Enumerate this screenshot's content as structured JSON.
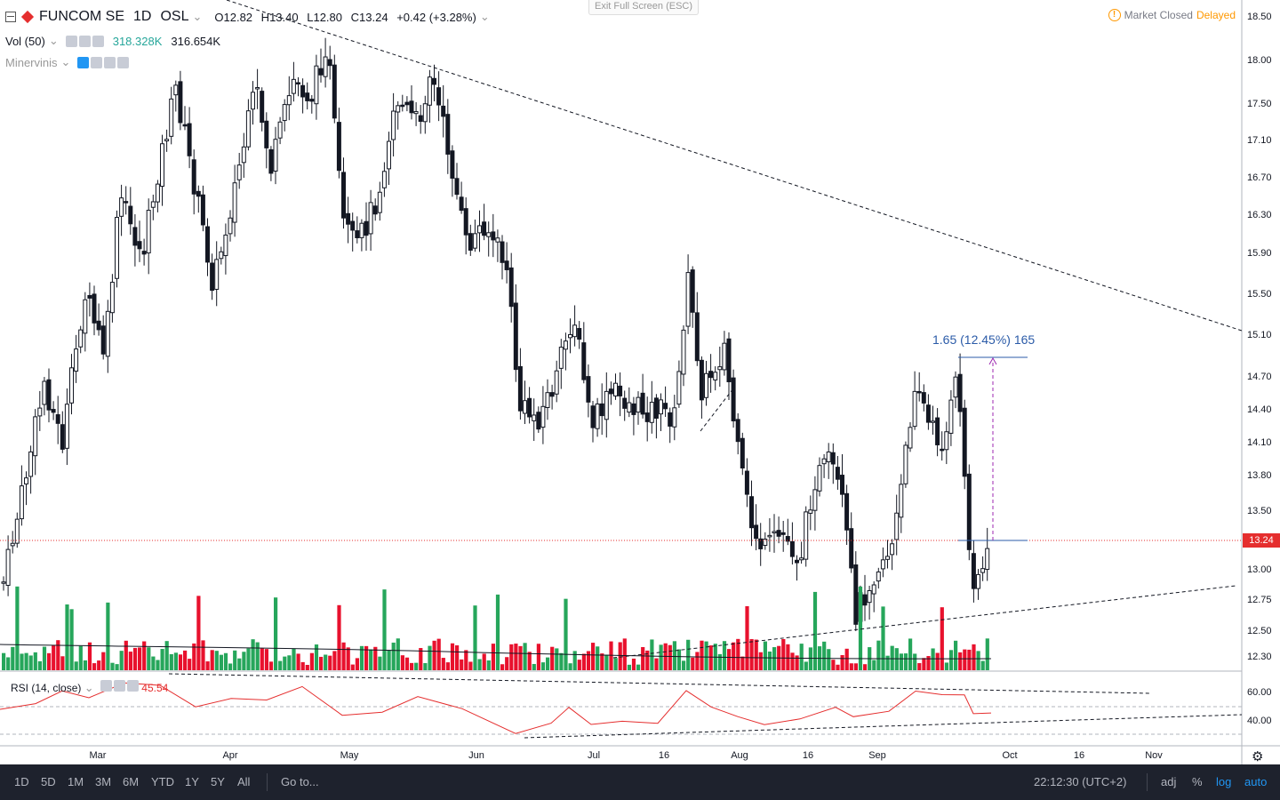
{
  "header": {
    "symbol": "FUNCOM SE",
    "interval": "1D",
    "exchange": "OSL",
    "open_label": "O",
    "open": "12.82",
    "high_label": "H",
    "high": "13.40",
    "low_label": "L",
    "low": "12.80",
    "close_label": "C",
    "close": "13.24",
    "change": "+0.42 (+3.28%)"
  },
  "volume_legend": {
    "label": "Vol (50)",
    "value1": "318.328K",
    "value2": "316.654K"
  },
  "indicator_legend": {
    "label": "Minervinis"
  },
  "exit_fullscreen": "Exit Full Screen (ESC)",
  "market_status": {
    "icon": "warning-icon",
    "text": "Market Closed",
    "delayed": "Delayed"
  },
  "measure_label": "1.65 (12.45%) 165",
  "last_price": "13.24",
  "rsi_legend": {
    "label": "RSI (14, close)",
    "value": "45.54"
  },
  "price_ticks": [
    "18.50",
    "18.00",
    "17.50",
    "17.10",
    "16.70",
    "16.30",
    "15.90",
    "15.50",
    "15.10",
    "14.70",
    "14.40",
    "14.10",
    "13.80",
    "13.50",
    "13.00",
    "12.75",
    "12.50",
    "12.30"
  ],
  "rsi_ticks": [
    "60.00",
    "40.00"
  ],
  "time_ticks": [
    "Mar",
    "Apr",
    "May",
    "Jun",
    "Jul",
    "16",
    "Aug",
    "16",
    "Sep",
    "Oct",
    "16",
    "Nov"
  ],
  "colors": {
    "up": "#26a69a",
    "down": "#e52e2e",
    "vol_up": "#26a65b",
    "vol_down": "#e8112d",
    "candle": "#131722",
    "measure": "#2b5ba8"
  },
  "bottom_bar": {
    "ranges": [
      "1D",
      "5D",
      "1M",
      "3M",
      "6M",
      "YTD",
      "1Y",
      "5Y",
      "All"
    ],
    "goto": "Go to...",
    "clock": "22:12:30 (UTC+2)",
    "options": [
      "adj",
      "%",
      "log",
      "auto"
    ]
  }
}
